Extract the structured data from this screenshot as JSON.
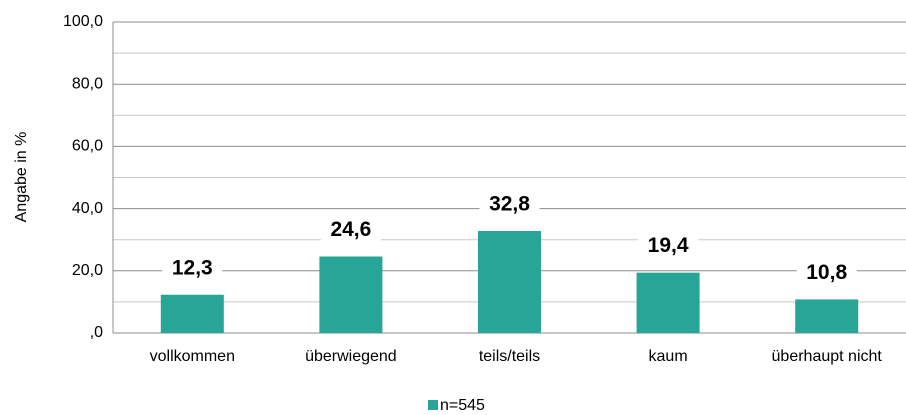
{
  "chart_data": {
    "type": "bar",
    "ylabel": "Angabe in %",
    "categories": [
      "vollkommen",
      "überwiegend",
      "teils/teils",
      "kaum",
      "überhaupt nicht"
    ],
    "series": [
      {
        "name": "n=545",
        "color": "#27a596",
        "values": [
          12.3,
          24.6,
          32.8,
          19.4,
          10.8
        ],
        "value_labels": [
          "12,3",
          "24,6",
          "32,8",
          "19,4",
          "10,8"
        ]
      }
    ],
    "ylim": [
      0,
      100
    ],
    "yticks": [
      {
        "value": 0,
        "label": ",0"
      },
      {
        "value": 20,
        "label": "20,0"
      },
      {
        "value": 40,
        "label": "40,0"
      },
      {
        "value": 60,
        "label": "60,0"
      },
      {
        "value": 80,
        "label": "80,0"
      },
      {
        "value": 100,
        "label": "100,0"
      }
    ],
    "minor_yticks": [
      10,
      30,
      50,
      70,
      90
    ],
    "grid": true,
    "legend": "bottom"
  }
}
